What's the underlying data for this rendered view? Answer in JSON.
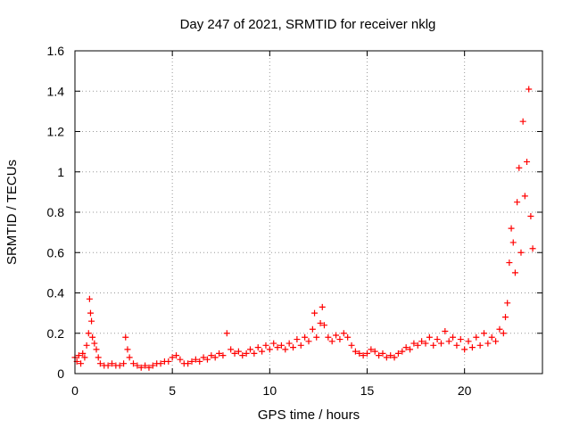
{
  "chart_data": {
    "type": "scatter",
    "title": "Day 247 of 2021, SRMTID for receiver nklg",
    "xlabel": "GPS time / hours",
    "ylabel": "SRMTID / TECUs",
    "xlim": [
      0,
      24
    ],
    "ylim": [
      0,
      1.6
    ],
    "xticks": [
      0,
      5,
      10,
      15,
      20
    ],
    "xtick_labels": [
      "0",
      "5",
      "10",
      "15",
      "20"
    ],
    "yticks": [
      0,
      0.2,
      0.4,
      0.6,
      0.8,
      1.0,
      1.2,
      1.4,
      1.6
    ],
    "ytick_labels": [
      "0",
      "0.2",
      "0.4",
      "0.6",
      "0.8",
      "1",
      "1.2",
      "1.4",
      "1.6"
    ],
    "grid": true,
    "marker": "+",
    "series": [
      {
        "name": "nklg",
        "color": "#ff0000",
        "points": [
          [
            0.0,
            0.08
          ],
          [
            0.1,
            0.06
          ],
          [
            0.2,
            0.09
          ],
          [
            0.3,
            0.05
          ],
          [
            0.4,
            0.1
          ],
          [
            0.5,
            0.08
          ],
          [
            0.6,
            0.14
          ],
          [
            0.7,
            0.2
          ],
          [
            0.75,
            0.37
          ],
          [
            0.8,
            0.3
          ],
          [
            0.85,
            0.26
          ],
          [
            0.9,
            0.18
          ],
          [
            1.0,
            0.15
          ],
          [
            1.1,
            0.12
          ],
          [
            1.2,
            0.08
          ],
          [
            1.3,
            0.05
          ],
          [
            1.5,
            0.04
          ],
          [
            1.7,
            0.04
          ],
          [
            1.9,
            0.05
          ],
          [
            2.1,
            0.04
          ],
          [
            2.3,
            0.04
          ],
          [
            2.5,
            0.05
          ],
          [
            2.6,
            0.18
          ],
          [
            2.7,
            0.12
          ],
          [
            2.8,
            0.08
          ],
          [
            3.0,
            0.05
          ],
          [
            3.2,
            0.04
          ],
          [
            3.4,
            0.03
          ],
          [
            3.6,
            0.04
          ],
          [
            3.8,
            0.03
          ],
          [
            4.0,
            0.04
          ],
          [
            4.2,
            0.05
          ],
          [
            4.4,
            0.05
          ],
          [
            4.6,
            0.06
          ],
          [
            4.8,
            0.06
          ],
          [
            5.0,
            0.08
          ],
          [
            5.2,
            0.09
          ],
          [
            5.4,
            0.07
          ],
          [
            5.6,
            0.05
          ],
          [
            5.8,
            0.05
          ],
          [
            6.0,
            0.06
          ],
          [
            6.2,
            0.07
          ],
          [
            6.4,
            0.06
          ],
          [
            6.6,
            0.08
          ],
          [
            6.8,
            0.07
          ],
          [
            7.0,
            0.09
          ],
          [
            7.2,
            0.08
          ],
          [
            7.4,
            0.1
          ],
          [
            7.6,
            0.09
          ],
          [
            7.8,
            0.2
          ],
          [
            8.0,
            0.12
          ],
          [
            8.2,
            0.1
          ],
          [
            8.4,
            0.11
          ],
          [
            8.6,
            0.09
          ],
          [
            8.8,
            0.1
          ],
          [
            9.0,
            0.12
          ],
          [
            9.2,
            0.1
          ],
          [
            9.4,
            0.13
          ],
          [
            9.6,
            0.11
          ],
          [
            9.8,
            0.14
          ],
          [
            10.0,
            0.12
          ],
          [
            10.2,
            0.15
          ],
          [
            10.4,
            0.13
          ],
          [
            10.6,
            0.14
          ],
          [
            10.8,
            0.12
          ],
          [
            11.0,
            0.15
          ],
          [
            11.2,
            0.13
          ],
          [
            11.4,
            0.17
          ],
          [
            11.6,
            0.14
          ],
          [
            11.8,
            0.18
          ],
          [
            12.0,
            0.16
          ],
          [
            12.2,
            0.22
          ],
          [
            12.3,
            0.3
          ],
          [
            12.4,
            0.18
          ],
          [
            12.6,
            0.25
          ],
          [
            12.7,
            0.33
          ],
          [
            12.8,
            0.24
          ],
          [
            13.0,
            0.18
          ],
          [
            13.2,
            0.16
          ],
          [
            13.4,
            0.19
          ],
          [
            13.6,
            0.17
          ],
          [
            13.8,
            0.2
          ],
          [
            14.0,
            0.18
          ],
          [
            14.2,
            0.14
          ],
          [
            14.4,
            0.11
          ],
          [
            14.6,
            0.1
          ],
          [
            14.8,
            0.09
          ],
          [
            15.0,
            0.1
          ],
          [
            15.2,
            0.12
          ],
          [
            15.4,
            0.11
          ],
          [
            15.6,
            0.09
          ],
          [
            15.8,
            0.1
          ],
          [
            16.0,
            0.08
          ],
          [
            16.2,
            0.09
          ],
          [
            16.4,
            0.08
          ],
          [
            16.6,
            0.1
          ],
          [
            16.8,
            0.11
          ],
          [
            17.0,
            0.13
          ],
          [
            17.2,
            0.12
          ],
          [
            17.4,
            0.15
          ],
          [
            17.6,
            0.14
          ],
          [
            17.8,
            0.16
          ],
          [
            18.0,
            0.15
          ],
          [
            18.2,
            0.18
          ],
          [
            18.4,
            0.14
          ],
          [
            18.6,
            0.17
          ],
          [
            18.8,
            0.15
          ],
          [
            19.0,
            0.21
          ],
          [
            19.2,
            0.16
          ],
          [
            19.4,
            0.18
          ],
          [
            19.6,
            0.14
          ],
          [
            19.8,
            0.17
          ],
          [
            20.0,
            0.12
          ],
          [
            20.2,
            0.16
          ],
          [
            20.4,
            0.13
          ],
          [
            20.6,
            0.18
          ],
          [
            20.8,
            0.14
          ],
          [
            21.0,
            0.2
          ],
          [
            21.2,
            0.15
          ],
          [
            21.4,
            0.18
          ],
          [
            21.6,
            0.16
          ],
          [
            21.8,
            0.22
          ],
          [
            22.0,
            0.2
          ],
          [
            22.1,
            0.28
          ],
          [
            22.2,
            0.35
          ],
          [
            22.3,
            0.55
          ],
          [
            22.4,
            0.72
          ],
          [
            22.5,
            0.65
          ],
          [
            22.6,
            0.5
          ],
          [
            22.7,
            0.85
          ],
          [
            22.8,
            1.02
          ],
          [
            22.9,
            0.6
          ],
          [
            23.0,
            1.25
          ],
          [
            23.1,
            0.88
          ],
          [
            23.2,
            1.05
          ],
          [
            23.3,
            1.41
          ],
          [
            23.4,
            0.78
          ],
          [
            23.5,
            0.62
          ]
        ]
      }
    ]
  }
}
